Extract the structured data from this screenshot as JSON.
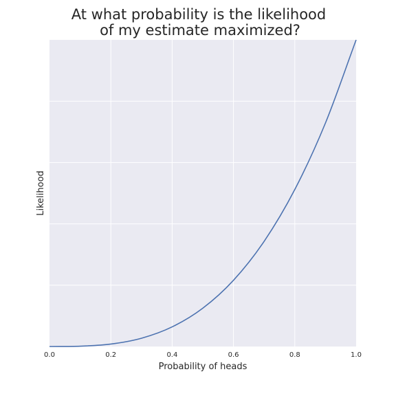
{
  "chart_data": {
    "type": "line",
    "title_lines": [
      "At what probability is the likelihood",
      "of my estimate maximized?"
    ],
    "xlabel": "Probability of heads",
    "ylabel": "Likelihood",
    "xlim": [
      0,
      1
    ],
    "ylim": [
      0,
      1
    ],
    "x_ticks": [
      "0.0",
      "0.2",
      "0.4",
      "0.6",
      "0.8",
      "1.0"
    ],
    "y_tick_labels_shown": false,
    "grid": true,
    "colors": {
      "background": "#eaeaf2",
      "grid": "#ffffff",
      "line": "#4c72b0"
    },
    "series": [
      {
        "x": [
          0.0,
          0.1,
          0.2,
          0.3,
          0.4,
          0.5,
          0.6,
          0.7,
          0.8,
          0.9,
          1.0
        ],
        "y": [
          0.0,
          0.001,
          0.008,
          0.027,
          0.064,
          0.125,
          0.216,
          0.343,
          0.512,
          0.729,
          1.0
        ]
      }
    ]
  }
}
